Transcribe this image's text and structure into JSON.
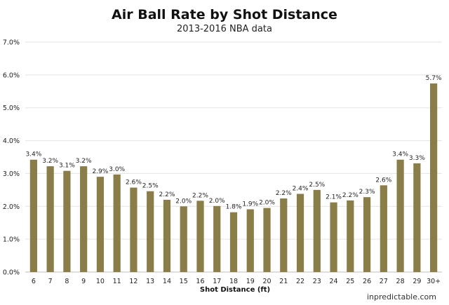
{
  "title": "Air Ball Rate by Shot Distance",
  "subtitle": "2013-2016 NBA data",
  "credit": "inpredictable.com",
  "colors": {
    "bar": "#8a7d48",
    "grid": "#e3e3e3"
  },
  "chart_data": {
    "type": "bar",
    "title": "Air Ball Rate by Shot Distance",
    "subtitle": "2013-2016 NBA data",
    "xlabel": "Shot Distance (ft)",
    "ylabel": "",
    "ylim": [
      0,
      7
    ],
    "yticks": [
      "0.0%",
      "1.0%",
      "2.0%",
      "3.0%",
      "4.0%",
      "5.0%",
      "6.0%",
      "7.0%"
    ],
    "grid": true,
    "categories": [
      "6",
      "7",
      "8",
      "9",
      "10",
      "11",
      "12",
      "13",
      "14",
      "15",
      "16",
      "17",
      "18",
      "19",
      "20",
      "21",
      "22",
      "23",
      "24",
      "25",
      "26",
      "27",
      "28",
      "29",
      "30+"
    ],
    "values": [
      3.42,
      3.22,
      3.08,
      3.22,
      2.9,
      2.97,
      2.57,
      2.46,
      2.2,
      2.0,
      2.17,
      2.01,
      1.82,
      1.91,
      1.95,
      2.24,
      2.38,
      2.5,
      2.12,
      2.18,
      2.28,
      2.64,
      3.42,
      3.31,
      5.74
    ],
    "labels": [
      "3.4%",
      "3.2%",
      "3.1%",
      "3.2%",
      "2.9%",
      "3.0%",
      "2.6%",
      "2.5%",
      "2.2%",
      "2.0%",
      "2.2%",
      "2.0%",
      "1.8%",
      "1.9%",
      "2.0%",
      "2.2%",
      "2.4%",
      "2.5%",
      "2.1%",
      "2.2%",
      "2.3%",
      "2.6%",
      "3.4%",
      "3.3%",
      "5.7%"
    ]
  }
}
